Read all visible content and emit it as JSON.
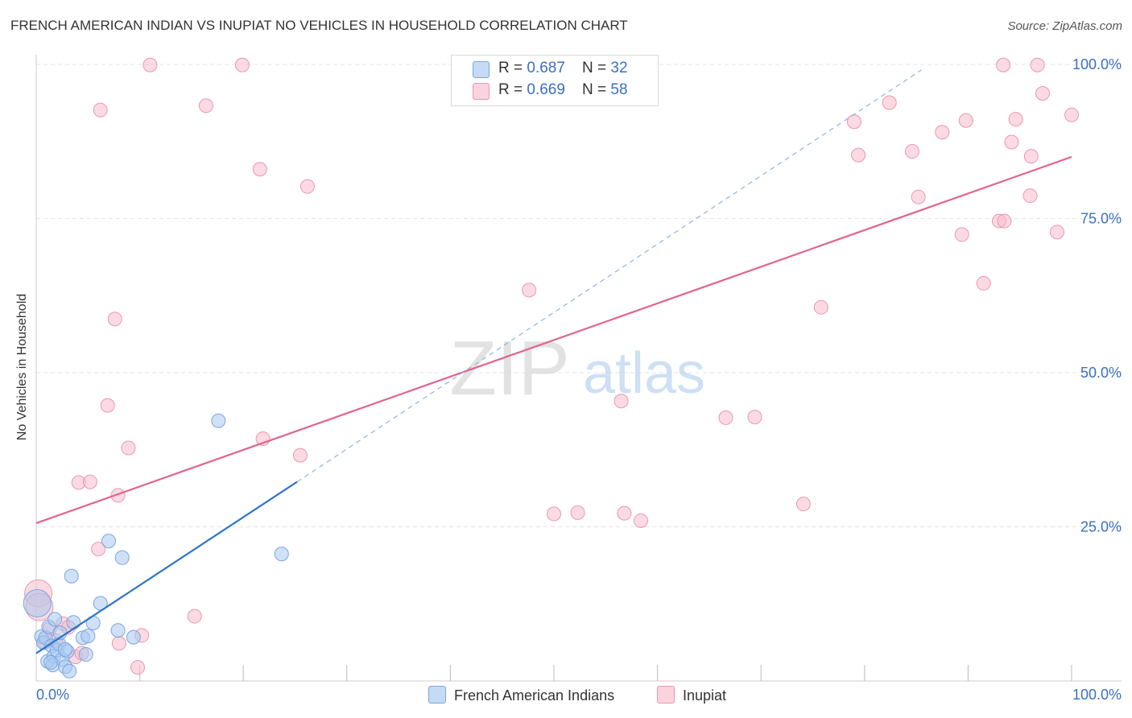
{
  "header": {
    "title": "FRENCH AMERICAN INDIAN VS INUPIAT NO VEHICLES IN HOUSEHOLD CORRELATION CHART",
    "source": "Source: ZipAtlas.com"
  },
  "watermark": {
    "zip": "ZIP",
    "atlas": "atlas"
  },
  "legend": {
    "series1": {
      "r_label": "R = ",
      "r_value": "0.687",
      "n_label": "N = ",
      "n_value": "32"
    },
    "series2": {
      "r_label": "R = ",
      "r_value": "0.669",
      "n_label": "N = ",
      "n_value": "58"
    }
  },
  "bottom_legend": {
    "series1": "French American Indians",
    "series2": "Inupiat"
  },
  "colors": {
    "blue_fill": "#a9c8f0",
    "blue_stroke": "#7aa6df",
    "blue_line": "#2e74c9",
    "pink_fill": "#f7bccc",
    "pink_stroke": "#ec97b0",
    "pink_line": "#e0648d",
    "tick_text": "#3a6fc4",
    "grid": "#e6e6e6"
  },
  "chart_data": {
    "type": "scatter",
    "title": "FRENCH AMERICAN INDIAN VS INUPIAT NO VEHICLES IN HOUSEHOLD CORRELATION CHART",
    "xlabel": "",
    "ylabel": "No Vehicles in Household",
    "xlim": [
      0,
      100
    ],
    "ylim": [
      0,
      100
    ],
    "x_tick_labels": [
      "0.0%",
      "100.0%"
    ],
    "y_ticks": [
      25,
      50,
      75,
      100
    ],
    "y_tick_labels": [
      "25.0%",
      "50.0%",
      "75.0%",
      "100.0%"
    ],
    "grid": true,
    "series": [
      {
        "name": "French American Indians",
        "color": "#a9c8f0",
        "R": 0.687,
        "N": 32,
        "trend": {
          "x": [
            0,
            25.2
          ],
          "y": [
            4.5,
            32.3
          ]
        },
        "trend_extension": {
          "x": [
            25.2,
            85.5
          ],
          "y": [
            32.3,
            99.1
          ]
        },
        "points": [
          [
            0.1,
            12.6
          ],
          [
            0.5,
            7.2
          ],
          [
            0.7,
            6.2
          ],
          [
            0.9,
            7.0
          ],
          [
            1.1,
            3.2
          ],
          [
            1.2,
            8.8
          ],
          [
            1.5,
            5.7
          ],
          [
            1.7,
            4.0
          ],
          [
            1.6,
            2.6
          ],
          [
            1.8,
            10.0
          ],
          [
            2.0,
            5.0
          ],
          [
            2.2,
            6.0
          ],
          [
            2.5,
            3.5
          ],
          [
            2.8,
            2.3
          ],
          [
            3.0,
            4.8
          ],
          [
            3.2,
            1.6
          ],
          [
            3.4,
            17.0
          ],
          [
            3.6,
            9.5
          ],
          [
            2.8,
            5.1
          ],
          [
            4.5,
            7.0
          ],
          [
            5.0,
            7.3
          ],
          [
            5.5,
            9.4
          ],
          [
            6.2,
            12.6
          ],
          [
            7.0,
            22.7
          ],
          [
            7.9,
            8.2
          ],
          [
            8.3,
            20.0
          ],
          [
            9.4,
            7.1
          ],
          [
            17.6,
            42.2
          ],
          [
            23.7,
            20.6
          ],
          [
            2.3,
            7.8
          ],
          [
            1.4,
            3.0
          ],
          [
            4.8,
            4.3
          ]
        ]
      },
      {
        "name": "Inupiat",
        "color": "#f7bccc",
        "R": 0.669,
        "N": 58,
        "trend": {
          "x": [
            0,
            100
          ],
          "y": [
            25.6,
            85.0
          ]
        },
        "points": [
          [
            0.2,
            14.2
          ],
          [
            0.8,
            6.3
          ],
          [
            1.3,
            8.5
          ],
          [
            1.9,
            6.5
          ],
          [
            2.6,
            9.3
          ],
          [
            3.1,
            8.7
          ],
          [
            3.8,
            3.9
          ],
          [
            4.4,
            4.5
          ],
          [
            4.1,
            32.2
          ],
          [
            5.2,
            32.3
          ],
          [
            6.0,
            21.4
          ],
          [
            6.9,
            44.7
          ],
          [
            6.2,
            92.6
          ],
          [
            7.6,
            58.7
          ],
          [
            7.9,
            30.1
          ],
          [
            8.0,
            6.1
          ],
          [
            8.9,
            37.8
          ],
          [
            9.8,
            2.2
          ],
          [
            10.2,
            7.4
          ],
          [
            11.0,
            99.9
          ],
          [
            15.3,
            10.5
          ],
          [
            16.4,
            93.3
          ],
          [
            19.9,
            99.9
          ],
          [
            21.6,
            83.0
          ],
          [
            21.9,
            39.3
          ],
          [
            25.5,
            36.6
          ],
          [
            26.2,
            80.2
          ],
          [
            47.6,
            63.4
          ],
          [
            50.0,
            27.1
          ],
          [
            52.3,
            27.3
          ],
          [
            56.5,
            45.4
          ],
          [
            56.8,
            27.2
          ],
          [
            58.4,
            26.0
          ],
          [
            66.6,
            42.7
          ],
          [
            69.4,
            42.8
          ],
          [
            74.1,
            28.7
          ],
          [
            75.8,
            60.6
          ],
          [
            79.0,
            90.7
          ],
          [
            79.4,
            85.3
          ],
          [
            82.4,
            93.8
          ],
          [
            84.6,
            85.9
          ],
          [
            85.2,
            78.5
          ],
          [
            87.5,
            89.0
          ],
          [
            89.4,
            72.4
          ],
          [
            89.8,
            90.9
          ],
          [
            91.5,
            64.5
          ],
          [
            93.0,
            74.6
          ],
          [
            93.5,
            74.6
          ],
          [
            93.4,
            99.9
          ],
          [
            94.2,
            87.4
          ],
          [
            94.6,
            91.1
          ],
          [
            96.1,
            85.1
          ],
          [
            96.0,
            78.7
          ],
          [
            96.7,
            99.9
          ],
          [
            97.2,
            95.3
          ],
          [
            98.6,
            72.8
          ],
          [
            100.0,
            91.8
          ],
          [
            0.3,
            12.0
          ]
        ]
      }
    ]
  }
}
